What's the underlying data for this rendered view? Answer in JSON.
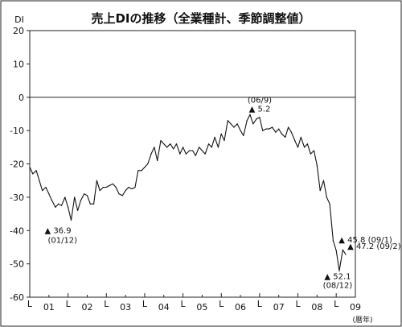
{
  "chart_data": {
    "type": "line",
    "title": "売上DIの推移（全業種計、季節調整値）",
    "y_unit_label": "DI",
    "x_unit_label": "(暦年)",
    "ylim": [
      -60,
      20
    ],
    "yticks": [
      20,
      10,
      0,
      -10,
      -20,
      -30,
      -40,
      -50,
      -60
    ],
    "xlim": [
      2000.5,
      2009.0
    ],
    "x_tick_labels": [
      {
        "x": 2001.0,
        "label": "01"
      },
      {
        "x": 2002.0,
        "label": "02"
      },
      {
        "x": 2003.0,
        "label": "03"
      },
      {
        "x": 2004.0,
        "label": "04"
      },
      {
        "x": 2005.0,
        "label": "05"
      },
      {
        "x": 2006.0,
        "label": "06"
      },
      {
        "x": 2007.0,
        "label": "07"
      },
      {
        "x": 2008.0,
        "label": "08"
      },
      {
        "x": 2009.0,
        "label": "09"
      }
    ],
    "x_minor_tick_label": "L",
    "x_minor_ticks": [
      2000.5,
      2001.5,
      2002.5,
      2003.5,
      2004.5,
      2005.5,
      2006.5,
      2007.5,
      2008.5
    ],
    "series": [
      {
        "points": [
          [
            2000.5,
            -21.0
          ],
          [
            2000.58,
            -23.0
          ],
          [
            2000.67,
            -22.0
          ],
          [
            2000.75,
            -25.0
          ],
          [
            2000.83,
            -28.0
          ],
          [
            2000.92,
            -27.0
          ],
          [
            2001.0,
            -29.0
          ],
          [
            2001.08,
            -31.0
          ],
          [
            2001.17,
            -33.0
          ],
          [
            2001.25,
            -32.0
          ],
          [
            2001.33,
            -32.5
          ],
          [
            2001.42,
            -30.0
          ],
          [
            2001.5,
            -33.0
          ],
          [
            2001.58,
            -36.9
          ],
          [
            2001.67,
            -30.0
          ],
          [
            2001.75,
            -34.0
          ],
          [
            2001.83,
            -31.0
          ],
          [
            2001.92,
            -29.0
          ],
          [
            2002.0,
            -29.5
          ],
          [
            2002.08,
            -32.0
          ],
          [
            2002.17,
            -32.0
          ],
          [
            2002.25,
            -25.0
          ],
          [
            2002.33,
            -28.0
          ],
          [
            2002.42,
            -27.0
          ],
          [
            2002.5,
            -27.0
          ],
          [
            2002.58,
            -26.5
          ],
          [
            2002.67,
            -26.0
          ],
          [
            2002.75,
            -27.0
          ],
          [
            2002.83,
            -29.0
          ],
          [
            2002.92,
            -29.5
          ],
          [
            2003.0,
            -28.0
          ],
          [
            2003.08,
            -27.0
          ],
          [
            2003.17,
            -27.5
          ],
          [
            2003.25,
            -27.0
          ],
          [
            2003.33,
            -22.0
          ],
          [
            2003.42,
            -22.0
          ],
          [
            2003.5,
            -21.0
          ],
          [
            2003.58,
            -20.0
          ],
          [
            2003.67,
            -17.0
          ],
          [
            2003.75,
            -15.0
          ],
          [
            2003.83,
            -19.0
          ],
          [
            2003.92,
            -13.0
          ],
          [
            2004.0,
            -14.0
          ],
          [
            2004.08,
            -15.0
          ],
          [
            2004.17,
            -14.0
          ],
          [
            2004.25,
            -15.5
          ],
          [
            2004.33,
            -14.0
          ],
          [
            2004.42,
            -17.0
          ],
          [
            2004.5,
            -15.0
          ],
          [
            2004.58,
            -17.0
          ],
          [
            2004.67,
            -16.0
          ],
          [
            2004.75,
            -16.0
          ],
          [
            2004.83,
            -17.5
          ],
          [
            2004.92,
            -15.0
          ],
          [
            2005.0,
            -16.0
          ],
          [
            2005.08,
            -17.0
          ],
          [
            2005.17,
            -14.0
          ],
          [
            2005.25,
            -15.0
          ],
          [
            2005.33,
            -12.0
          ],
          [
            2005.42,
            -15.0
          ],
          [
            2005.5,
            -11.0
          ],
          [
            2005.58,
            -13.0
          ],
          [
            2005.67,
            -7.0
          ],
          [
            2005.75,
            -8.0
          ],
          [
            2005.83,
            -9.0
          ],
          [
            2005.92,
            -8.0
          ],
          [
            2006.0,
            -10.0
          ],
          [
            2006.08,
            -11.5
          ],
          [
            2006.17,
            -7.0
          ],
          [
            2006.25,
            -5.2
          ],
          [
            2006.33,
            -8.0
          ],
          [
            2006.42,
            -6.5
          ],
          [
            2006.5,
            -6.0
          ],
          [
            2006.58,
            -10.0
          ],
          [
            2006.67,
            -9.5
          ],
          [
            2006.75,
            -9.5
          ],
          [
            2006.83,
            -9.0
          ],
          [
            2006.92,
            -10.5
          ],
          [
            2007.0,
            -9.5
          ],
          [
            2007.08,
            -11.0
          ],
          [
            2007.17,
            -12.0
          ],
          [
            2007.25,
            -9.0
          ],
          [
            2007.33,
            -10.5
          ],
          [
            2007.42,
            -13.0
          ],
          [
            2007.5,
            -15.0
          ],
          [
            2007.58,
            -12.0
          ],
          [
            2007.67,
            -15.0
          ],
          [
            2007.75,
            -14.0
          ],
          [
            2007.83,
            -17.0
          ],
          [
            2007.92,
            -16.0
          ],
          [
            2008.0,
            -20.5
          ],
          [
            2008.08,
            -28.0
          ],
          [
            2008.17,
            -25.0
          ],
          [
            2008.25,
            -30.0
          ],
          [
            2008.33,
            -32.0
          ],
          [
            2008.42,
            -43.0
          ],
          [
            2008.5,
            -46.0
          ],
          [
            2008.58,
            -52.1
          ],
          [
            2008.67,
            -45.8
          ],
          [
            2008.75,
            -47.2
          ]
        ]
      }
    ],
    "annotations": [
      {
        "x": 2001.58,
        "y": -36.9,
        "value": "▲ 36.9",
        "date": "(01/12)"
      },
      {
        "x": 2006.25,
        "y": -5.2,
        "value": "▲ 5.2",
        "date": "(06/9)"
      },
      {
        "x": 2008.58,
        "y": -52.1,
        "value": "▲ 52.1",
        "date": "(08/12)"
      },
      {
        "x": 2008.67,
        "y": -45.8,
        "value": "▲ 45.8 (09/1)"
      },
      {
        "x": 2008.75,
        "y": -47.2,
        "value": "▲ 47.2 (09/2)"
      }
    ],
    "zero_line": true,
    "grid": false
  }
}
